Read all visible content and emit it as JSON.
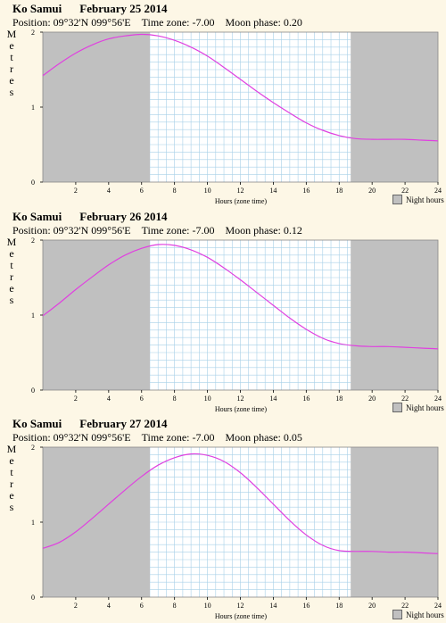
{
  "location": "Ko Samui",
  "y_axis_label": "Metres",
  "legend_label": "Night hours",
  "colors": {
    "background": "#fdf7e6",
    "night": "#c0c0c0",
    "grid": "#a8d0e8",
    "curve": "#e040e0"
  },
  "chart_data": [
    {
      "type": "line",
      "title": "Ko Samui",
      "date": "February 25 2014",
      "position": "Position: 09°32'N 099°56'E",
      "timezone": "Time zone:  -7.00",
      "moon_phase": "Moon phase: 0.20",
      "xlabel": "Hours (zone time)",
      "ylabel": "Metres",
      "xlim": [
        0,
        24
      ],
      "ylim": [
        0,
        2
      ],
      "x_ticks": [
        2,
        4,
        6,
        8,
        10,
        12,
        14,
        16,
        18,
        20,
        22,
        24
      ],
      "y_ticks": [
        0,
        1,
        2
      ],
      "night_hours": [
        [
          0,
          6.5
        ],
        [
          18.7,
          24
        ]
      ],
      "x": [
        0,
        1,
        2,
        3,
        4,
        5,
        6,
        7,
        8,
        9,
        10,
        11,
        12,
        13,
        14,
        15,
        16,
        17,
        18,
        19,
        20,
        21,
        22,
        23,
        24
      ],
      "y": [
        1.42,
        1.58,
        1.72,
        1.83,
        1.91,
        1.95,
        1.97,
        1.95,
        1.89,
        1.8,
        1.68,
        1.53,
        1.37,
        1.21,
        1.06,
        0.92,
        0.79,
        0.69,
        0.62,
        0.58,
        0.57,
        0.57,
        0.57,
        0.56,
        0.55
      ]
    },
    {
      "type": "line",
      "title": "Ko Samui",
      "date": "February 26 2014",
      "position": "Position: 09°32'N 099°56'E",
      "timezone": "Time zone:  -7.00",
      "moon_phase": "Moon phase: 0.12",
      "xlabel": "Hours (zone time)",
      "ylabel": "Metres",
      "xlim": [
        0,
        24
      ],
      "ylim": [
        0,
        2
      ],
      "x_ticks": [
        2,
        4,
        6,
        8,
        10,
        12,
        14,
        16,
        18,
        20,
        22,
        24
      ],
      "y_ticks": [
        0,
        1,
        2
      ],
      "night_hours": [
        [
          0,
          6.5
        ],
        [
          18.7,
          24
        ]
      ],
      "x": [
        0,
        1,
        2,
        3,
        4,
        5,
        6,
        7,
        8,
        9,
        10,
        11,
        12,
        13,
        14,
        15,
        16,
        17,
        18,
        19,
        20,
        21,
        22,
        23,
        24
      ],
      "y": [
        0.99,
        1.16,
        1.34,
        1.51,
        1.67,
        1.8,
        1.89,
        1.94,
        1.93,
        1.87,
        1.77,
        1.63,
        1.47,
        1.3,
        1.13,
        0.96,
        0.81,
        0.69,
        0.62,
        0.59,
        0.58,
        0.58,
        0.57,
        0.56,
        0.55
      ]
    },
    {
      "type": "line",
      "title": "Ko Samui",
      "date": "February 27 2014",
      "position": "Position: 09°32'N 099°56'E",
      "timezone": "Time zone:  -7.00",
      "moon_phase": "Moon phase: 0.05",
      "xlabel": "Hours (zone time)",
      "ylabel": "Metres",
      "xlim": [
        0,
        24
      ],
      "ylim": [
        0,
        2
      ],
      "x_ticks": [
        2,
        4,
        6,
        8,
        10,
        12,
        14,
        16,
        18,
        20,
        22,
        24
      ],
      "y_ticks": [
        0,
        1,
        2
      ],
      "night_hours": [
        [
          0,
          6.5
        ],
        [
          18.7,
          24
        ]
      ],
      "x": [
        0,
        1,
        2,
        3,
        4,
        5,
        6,
        7,
        8,
        9,
        10,
        11,
        12,
        13,
        14,
        15,
        16,
        17,
        18,
        19,
        20,
        21,
        22,
        23,
        24
      ],
      "y": [
        0.65,
        0.73,
        0.87,
        1.05,
        1.24,
        1.43,
        1.61,
        1.76,
        1.86,
        1.91,
        1.89,
        1.81,
        1.66,
        1.46,
        1.24,
        1.02,
        0.83,
        0.69,
        0.62,
        0.61,
        0.61,
        0.6,
        0.6,
        0.59,
        0.58
      ]
    }
  ]
}
